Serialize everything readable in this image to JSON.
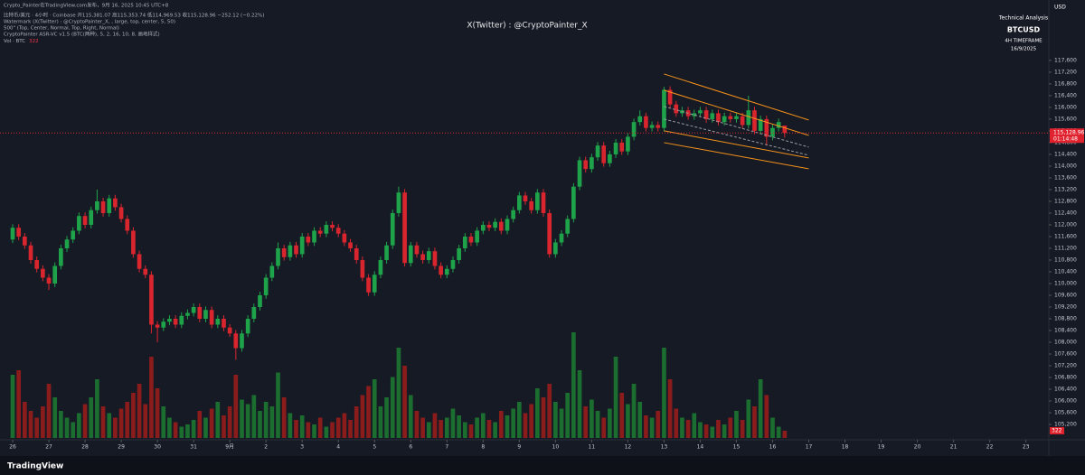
{
  "header": {
    "lines": [
      "Crypto_Painter在TradingView.com发布，9月 16, 2025 10:45 UTC+8",
      "比特币/美元 · 4小时 · Coinbase  开115,381.07 高115,353.74 低114,969.53 收115,128.96 −252.12 (−0.22%)",
      "Watermark (X(Twitter) : @CryptoPainter_X, , large, top, center, 5, 50)",
      "500\" (Top, Center, Normal, Top, Right, Normal)",
      "CryptoPainter ASR-VC v1.5 (BTC(两种), 5, 2, 16, 10, 8, 画地样式)"
    ],
    "vol_label": "Vol · BTC"
  },
  "watermark": "X(Twitter) : @CryptoPainter_X",
  "info": {
    "title": "Technical Analysis",
    "symbol": "BTCUSD",
    "timeframe": "4H TIMEFRAME",
    "date": "16/9/2025"
  },
  "currency": "USD",
  "brand": "TradingView",
  "chart_data": {
    "type": "candlestick",
    "up_color": "#1fa34a",
    "down_color": "#d9262e",
    "volume_up_color": "#1b6e2f",
    "volume_down_color": "#8a1c1c",
    "xlim": [
      -2.1,
      171.8
    ],
    "ylim": [
      104740,
      119350
    ],
    "xticks": [
      {
        "value": 0,
        "label": "26"
      },
      {
        "value": 6,
        "label": "27"
      },
      {
        "value": 12,
        "label": "28"
      },
      {
        "value": 18,
        "label": "29"
      },
      {
        "value": 24,
        "label": "30"
      },
      {
        "value": 30,
        "label": "31"
      },
      {
        "value": 36,
        "label": "9月"
      },
      {
        "value": 42,
        "label": "2"
      },
      {
        "value": 48,
        "label": "3"
      },
      {
        "value": 54,
        "label": "4"
      },
      {
        "value": 60,
        "label": "5"
      },
      {
        "value": 66,
        "label": "6"
      },
      {
        "value": 72,
        "label": "7"
      },
      {
        "value": 78,
        "label": "8"
      },
      {
        "value": 84,
        "label": "9"
      },
      {
        "value": 90,
        "label": "10"
      },
      {
        "value": 96,
        "label": "11"
      },
      {
        "value": 102,
        "label": "12"
      },
      {
        "value": 108,
        "label": "13"
      },
      {
        "value": 114,
        "label": "14"
      },
      {
        "value": 120,
        "label": "15"
      },
      {
        "value": 126,
        "label": "16"
      },
      {
        "value": 132,
        "label": "17"
      },
      {
        "value": 138,
        "label": "18"
      },
      {
        "value": 144,
        "label": "19"
      },
      {
        "value": 150,
        "label": "20"
      },
      {
        "value": 156,
        "label": "21"
      },
      {
        "value": 162,
        "label": "22"
      },
      {
        "value": 168,
        "label": "23"
      }
    ],
    "yticks": [
      {
        "value": 117600,
        "label": "117,600"
      },
      {
        "value": 117200,
        "label": "117,200"
      },
      {
        "value": 116800,
        "label": "116,800"
      },
      {
        "value": 116400,
        "label": "116,400"
      },
      {
        "value": 116000,
        "label": "116,000"
      },
      {
        "value": 115600,
        "label": "115,600"
      },
      {
        "value": 115200,
        "label": "115,200"
      },
      {
        "value": 114800,
        "label": "114,800"
      },
      {
        "value": 114400,
        "label": "114,400"
      },
      {
        "value": 114000,
        "label": "114,000"
      },
      {
        "value": 113600,
        "label": "113,600"
      },
      {
        "value": 113200,
        "label": "113,200"
      },
      {
        "value": 112800,
        "label": "112,800"
      },
      {
        "value": 112400,
        "label": "112,400"
      },
      {
        "value": 112000,
        "label": "112,000"
      },
      {
        "value": 111600,
        "label": "111,600"
      },
      {
        "value": 111200,
        "label": "111,200"
      },
      {
        "value": 110800,
        "label": "110,800"
      },
      {
        "value": 110400,
        "label": "110,400"
      },
      {
        "value": 110000,
        "label": "110,000"
      },
      {
        "value": 109600,
        "label": "109,600"
      },
      {
        "value": 109200,
        "label": "109,200"
      },
      {
        "value": 108800,
        "label": "108,800"
      },
      {
        "value": 108400,
        "label": "108,400"
      },
      {
        "value": 108000,
        "label": "108,000"
      },
      {
        "value": 107600,
        "label": "107,600"
      },
      {
        "value": 107200,
        "label": "107,200"
      },
      {
        "value": 106800,
        "label": "106,800"
      },
      {
        "value": 106400,
        "label": "106,400"
      },
      {
        "value": 106000,
        "label": "106,000"
      },
      {
        "value": 105600,
        "label": "105,600"
      },
      {
        "value": 105200,
        "label": "105,200"
      }
    ],
    "last_price": {
      "value": 115128.96,
      "label": "115,128.96"
    },
    "countdown": "01:14:48",
    "candles": [
      [
        111500,
        112020,
        111380,
        111900
      ],
      [
        111900,
        112020,
        111480,
        111600
      ],
      [
        111600,
        111720,
        111180,
        111300
      ],
      [
        111300,
        111420,
        110680,
        110800
      ],
      [
        110800,
        110920,
        110380,
        110500
      ],
      [
        110500,
        110620,
        110080,
        110200
      ],
      [
        110200,
        110320,
        109780,
        110000
      ],
      [
        110000,
        110720,
        109880,
        110600
      ],
      [
        110600,
        111320,
        110480,
        111200
      ],
      [
        111200,
        111620,
        111080,
        111500
      ],
      [
        111500,
        111920,
        111380,
        111800
      ],
      [
        111800,
        112420,
        111680,
        112300
      ],
      [
        112300,
        112420,
        111880,
        112000
      ],
      [
        112000,
        112620,
        111880,
        112500
      ],
      [
        112500,
        113200,
        112380,
        112800
      ],
      [
        112800,
        112920,
        112280,
        112400
      ],
      [
        112400,
        113020,
        112280,
        112900
      ],
      [
        112900,
        113020,
        112480,
        112600
      ],
      [
        112600,
        112720,
        112080,
        112200
      ],
      [
        112200,
        112320,
        111680,
        111800
      ],
      [
        111800,
        111920,
        110880,
        111000
      ],
      [
        111000,
        111120,
        110380,
        110500
      ],
      [
        110500,
        110620,
        110180,
        110300
      ],
      [
        110300,
        110420,
        108300,
        108600
      ],
      [
        108600,
        108720,
        108000,
        108500
      ],
      [
        108500,
        108820,
        108380,
        108700
      ],
      [
        108700,
        108920,
        108580,
        108800
      ],
      [
        108800,
        108920,
        108480,
        108600
      ],
      [
        108600,
        109020,
        108480,
        108900
      ],
      [
        108900,
        109120,
        108780,
        109000
      ],
      [
        109000,
        109320,
        108880,
        109200
      ],
      [
        109200,
        109320,
        108680,
        108800
      ],
      [
        108800,
        109220,
        108680,
        109100
      ],
      [
        109100,
        109220,
        108480,
        108600
      ],
      [
        108600,
        108920,
        108480,
        108800
      ],
      [
        108800,
        108920,
        108380,
        108500
      ],
      [
        108500,
        108620,
        108180,
        108300
      ],
      [
        108300,
        108420,
        107400,
        107800
      ],
      [
        107800,
        108420,
        107680,
        108300
      ],
      [
        108300,
        108920,
        108180,
        108800
      ],
      [
        108800,
        109320,
        108680,
        109200
      ],
      [
        109200,
        109720,
        109080,
        109600
      ],
      [
        109600,
        110320,
        109480,
        110200
      ],
      [
        110200,
        110720,
        110080,
        110600
      ],
      [
        110600,
        111400,
        110480,
        111200
      ],
      [
        111200,
        111320,
        110780,
        110900
      ],
      [
        110900,
        111420,
        110780,
        111300
      ],
      [
        111300,
        111420,
        110880,
        111000
      ],
      [
        111000,
        111720,
        110880,
        111600
      ],
      [
        111600,
        111720,
        111280,
        111400
      ],
      [
        111400,
        111920,
        111280,
        111800
      ],
      [
        111800,
        111920,
        111580,
        111700
      ],
      [
        111700,
        112120,
        111580,
        112000
      ],
      [
        112000,
        112120,
        111780,
        111900
      ],
      [
        111900,
        112020,
        111580,
        111700
      ],
      [
        111700,
        111820,
        111280,
        111400
      ],
      [
        111400,
        111520,
        111080,
        111200
      ],
      [
        111200,
        111320,
        110680,
        110800
      ],
      [
        110800,
        110920,
        110080,
        110200
      ],
      [
        110200,
        110320,
        109580,
        109700
      ],
      [
        109700,
        110420,
        109580,
        110300
      ],
      [
        110300,
        110920,
        110180,
        110800
      ],
      [
        110800,
        111420,
        110680,
        111300
      ],
      [
        111300,
        112520,
        111180,
        112400
      ],
      [
        112400,
        113300,
        112280,
        113100
      ],
      [
        113100,
        113220,
        110580,
        110700
      ],
      [
        110700,
        111420,
        110580,
        111300
      ],
      [
        111300,
        111420,
        110880,
        111000
      ],
      [
        111000,
        111120,
        110680,
        110800
      ],
      [
        110800,
        111220,
        110680,
        111100
      ],
      [
        111100,
        111220,
        110480,
        110600
      ],
      [
        110600,
        110720,
        110180,
        110300
      ],
      [
        110300,
        110620,
        110180,
        110500
      ],
      [
        110500,
        110920,
        110380,
        110800
      ],
      [
        110800,
        111320,
        110680,
        111200
      ],
      [
        111200,
        111720,
        111080,
        111600
      ],
      [
        111600,
        111720,
        111280,
        111400
      ],
      [
        111400,
        111920,
        111280,
        111800
      ],
      [
        111800,
        112120,
        111680,
        112000
      ],
      [
        112000,
        112120,
        111780,
        111900
      ],
      [
        111900,
        112220,
        111780,
        112100
      ],
      [
        112100,
        112220,
        111680,
        111800
      ],
      [
        111800,
        112320,
        111680,
        112200
      ],
      [
        112200,
        112620,
        112080,
        112500
      ],
      [
        112500,
        113120,
        112380,
        113000
      ],
      [
        113000,
        113120,
        112680,
        112800
      ],
      [
        112800,
        112920,
        112380,
        112500
      ],
      [
        112500,
        113220,
        112380,
        113100
      ],
      [
        113100,
        113220,
        112280,
        112400
      ],
      [
        112400,
        112520,
        110880,
        111000
      ],
      [
        111000,
        111520,
        110880,
        111400
      ],
      [
        111400,
        111820,
        111280,
        111700
      ],
      [
        111700,
        112320,
        111580,
        112200
      ],
      [
        112200,
        113420,
        112080,
        113300
      ],
      [
        113300,
        114320,
        113180,
        114200
      ],
      [
        114200,
        114320,
        113780,
        113900
      ],
      [
        113900,
        114420,
        113780,
        114300
      ],
      [
        114300,
        114820,
        114180,
        114700
      ],
      [
        114700,
        114820,
        113980,
        114100
      ],
      [
        114100,
        114520,
        113980,
        114400
      ],
      [
        114400,
        114920,
        114280,
        114800
      ],
      [
        114800,
        114920,
        114380,
        114500
      ],
      [
        114500,
        115120,
        114380,
        115000
      ],
      [
        115000,
        115620,
        114880,
        115500
      ],
      [
        115500,
        115900,
        115380,
        115700
      ],
      [
        115700,
        115820,
        115180,
        115300
      ],
      [
        115300,
        115520,
        115180,
        115400
      ],
      [
        115400,
        115520,
        115180,
        115300
      ],
      [
        115300,
        116700,
        115180,
        116600
      ],
      [
        116600,
        116720,
        115980,
        116100
      ],
      [
        116100,
        116220,
        115680,
        115800
      ],
      [
        115800,
        116020,
        115680,
        115900
      ],
      [
        115900,
        116020,
        115580,
        115700
      ],
      [
        115700,
        115920,
        115580,
        115800
      ],
      [
        115800,
        116020,
        115680,
        115900
      ],
      [
        115900,
        116020,
        115480,
        115600
      ],
      [
        115600,
        115920,
        115480,
        115800
      ],
      [
        115800,
        115920,
        115380,
        115500
      ],
      [
        115500,
        115820,
        115380,
        115700
      ],
      [
        115700,
        115820,
        115480,
        115600
      ],
      [
        115600,
        115820,
        115480,
        115700
      ],
      [
        115700,
        115820,
        115280,
        115400
      ],
      [
        115400,
        116400,
        115280,
        115900
      ],
      [
        115900,
        116020,
        115080,
        115200
      ],
      [
        115200,
        115720,
        115080,
        115600
      ],
      [
        115600,
        115720,
        114700,
        115000
      ],
      [
        115000,
        115420,
        114880,
        115300
      ],
      [
        115300,
        115620,
        115180,
        115500
      ],
      [
        115381.07,
        115353.74,
        114969.53,
        115128.96
      ]
    ],
    "volume": {
      "ylim": [
        0,
        4800
      ],
      "values": [
        2800,
        3000,
        1600,
        1200,
        900,
        1400,
        2400,
        1800,
        1200,
        900,
        700,
        1100,
        1500,
        1800,
        2600,
        1400,
        1100,
        900,
        1300,
        1600,
        2000,
        2400,
        1500,
        3600,
        2200,
        1400,
        900,
        700,
        500,
        600,
        800,
        1200,
        900,
        1300,
        1600,
        1000,
        1400,
        2800,
        1700,
        1500,
        1900,
        1200,
        1600,
        1400,
        2900,
        1800,
        1100,
        800,
        1000,
        700,
        600,
        900,
        500,
        700,
        900,
        1100,
        800,
        1400,
        1900,
        2300,
        2600,
        1400,
        1800,
        2700,
        4000,
        3200,
        1900,
        1200,
        900,
        700,
        1100,
        800,
        900,
        1300,
        1000,
        700,
        600,
        900,
        1100,
        800,
        700,
        1200,
        1000,
        1300,
        1600,
        1100,
        1500,
        2200,
        1800,
        2400,
        1600,
        1300,
        2000,
        4680,
        3000,
        1400,
        1700,
        1200,
        900,
        1300,
        3600,
        2000,
        1500,
        2400,
        1600,
        1000,
        900,
        1200,
        4000,
        2600,
        1300,
        900,
        800,
        1100,
        700,
        600,
        500,
        800,
        600,
        900,
        1200,
        800,
        1700,
        1400,
        2600,
        1900,
        900,
        500,
        322
      ]
    },
    "channel": [
      {
        "x": [
          108,
          132
        ],
        "y": [
          117138,
          115569
        ],
        "color": "#f7931a",
        "dash": false
      },
      {
        "x": [
          108,
          132
        ],
        "y": [
          116585,
          115046
        ],
        "color": "#f7931a",
        "dash": false
      },
      {
        "x": [
          108,
          132
        ],
        "y": [
          116031,
          114646
        ],
        "color": "#9a9aa0",
        "dash": true
      },
      {
        "x": [
          108,
          132
        ],
        "y": [
          115600,
          114369
        ],
        "color": "#9a9aa0",
        "dash": true
      },
      {
        "x": [
          108,
          132
        ],
        "y": [
          115200,
          114277
        ],
        "color": "#f7931a",
        "dash": false
      },
      {
        "x": [
          108,
          132
        ],
        "y": [
          114800,
          113908
        ],
        "color": "#f7931a",
        "dash": false
      }
    ]
  }
}
